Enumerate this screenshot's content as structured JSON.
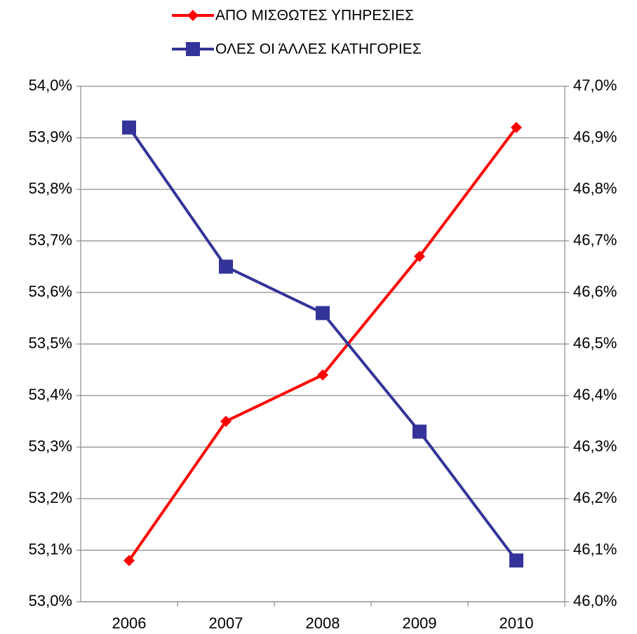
{
  "chart_data": {
    "type": "line",
    "categories": [
      "2006",
      "2007",
      "2008",
      "2009",
      "2010"
    ],
    "series": [
      {
        "name": "ΑΠΟ ΜΙΣΘΩΤΕΣ ΥΠΗΡΕΣΙΕΣ",
        "color": "#ff0000",
        "marker": "diamond",
        "axis": "y",
        "values": [
          53.08,
          53.35,
          53.44,
          53.67,
          53.92
        ]
      },
      {
        "name": "ΟΛΕΣ ΟΙ ΆΛΛΕΣ ΚΑΤΗΓΟΡΙΕΣ",
        "color": "#333399",
        "marker": "square",
        "axis": "y2",
        "values": [
          46.92,
          46.65,
          46.56,
          46.33,
          46.08
        ]
      }
    ],
    "ylim": [
      53.0,
      54.0
    ],
    "yticks": [
      {
        "value": 53.0,
        "label": "53,0%"
      },
      {
        "value": 53.1,
        "label": "53,1%"
      },
      {
        "value": 53.2,
        "label": "53,2%"
      },
      {
        "value": 53.3,
        "label": "53,3%"
      },
      {
        "value": 53.4,
        "label": "53,4%"
      },
      {
        "value": 53.5,
        "label": "53,5%"
      },
      {
        "value": 53.6,
        "label": "53,6%"
      },
      {
        "value": 53.7,
        "label": "53,7%"
      },
      {
        "value": 53.8,
        "label": "53,8%"
      },
      {
        "value": 53.9,
        "label": "53,9%"
      },
      {
        "value": 54.0,
        "label": "54,0%"
      }
    ],
    "y2lim": [
      46.0,
      47.0
    ],
    "y2ticks": [
      {
        "value": 46.0,
        "label": "46,0%"
      },
      {
        "value": 46.1,
        "label": "46,1%"
      },
      {
        "value": 46.2,
        "label": "46,2%"
      },
      {
        "value": 46.3,
        "label": "46,3%"
      },
      {
        "value": 46.4,
        "label": "46,4%"
      },
      {
        "value": 46.5,
        "label": "46,5%"
      },
      {
        "value": 46.6,
        "label": "46,6%"
      },
      {
        "value": 46.7,
        "label": "46,7%"
      },
      {
        "value": 46.8,
        "label": "46,8%"
      },
      {
        "value": 46.9,
        "label": "46,9%"
      },
      {
        "value": 47.0,
        "label": "47,0%"
      }
    ],
    "grid": true,
    "legend": "top"
  }
}
